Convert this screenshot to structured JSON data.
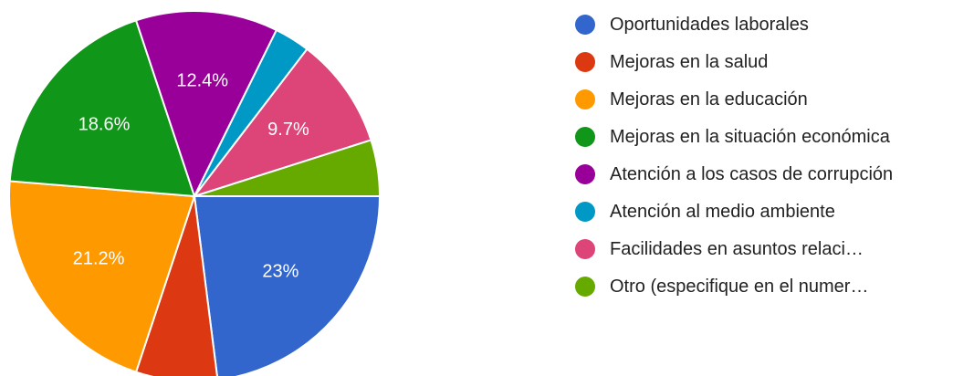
{
  "chart_data": {
    "type": "pie",
    "categories": [
      "Oportunidades laborales",
      "Mejoras en la salud",
      "Mejoras en la educación",
      "Mejoras en la situación económica",
      "Atención a los casos de corrupción",
      "Atención al medio ambiente",
      "Facilidades en asuntos relaci…",
      "Otro (especifique en el numer…"
    ],
    "values": [
      23,
      7.1,
      21.2,
      18.6,
      12.4,
      3.1,
      9.7,
      4.9
    ],
    "value_labels": [
      "23%",
      null,
      "21.2%",
      "18.6%",
      "12.4%",
      null,
      "9.7%",
      null
    ],
    "colors": [
      "#3366cc",
      "#dc3912",
      "#ff9900",
      "#109618",
      "#990099",
      "#0099c6",
      "#dd4477",
      "#66aa00"
    ]
  }
}
